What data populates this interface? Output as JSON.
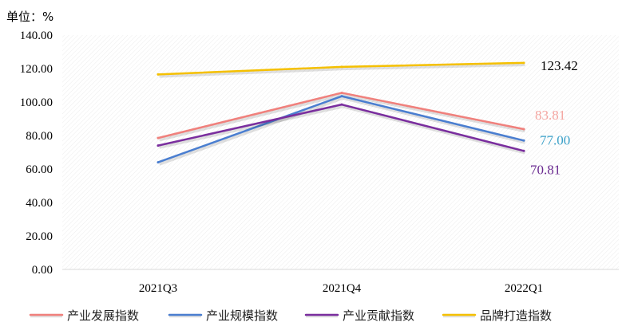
{
  "chart_data": {
    "type": "line",
    "unit_label": "单位：%",
    "categories": [
      "2021Q3",
      "2021Q4",
      "2022Q1"
    ],
    "ylim": [
      0,
      140
    ],
    "yticks": [
      "0.00",
      "20.00",
      "40.00",
      "60.00",
      "80.00",
      "100.00",
      "120.00",
      "140.00"
    ],
    "grid": false,
    "legend_position": "bottom",
    "series": [
      {
        "name": "产业发展指数",
        "values": [
          78.5,
          105.5,
          83.81
        ],
        "color": "#f0807c",
        "end_label": "83.81",
        "end_label_color": "#f4a5a0"
      },
      {
        "name": "产业规模指数",
        "values": [
          64.0,
          103.5,
          77.0
        ],
        "color": "#4a7ed0",
        "end_label": "77.00",
        "end_label_color": "#3aa0c8"
      },
      {
        "name": "产业贡献指数",
        "values": [
          74.0,
          98.5,
          70.81
        ],
        "color": "#7a2e9e",
        "end_label": "70.81",
        "end_label_color": "#6a2a90"
      },
      {
        "name": "品牌打造指数",
        "values": [
          116.5,
          121.0,
          123.42
        ],
        "color": "#f5c000",
        "end_label": "123.42",
        "end_label_color": "#000000"
      }
    ]
  }
}
